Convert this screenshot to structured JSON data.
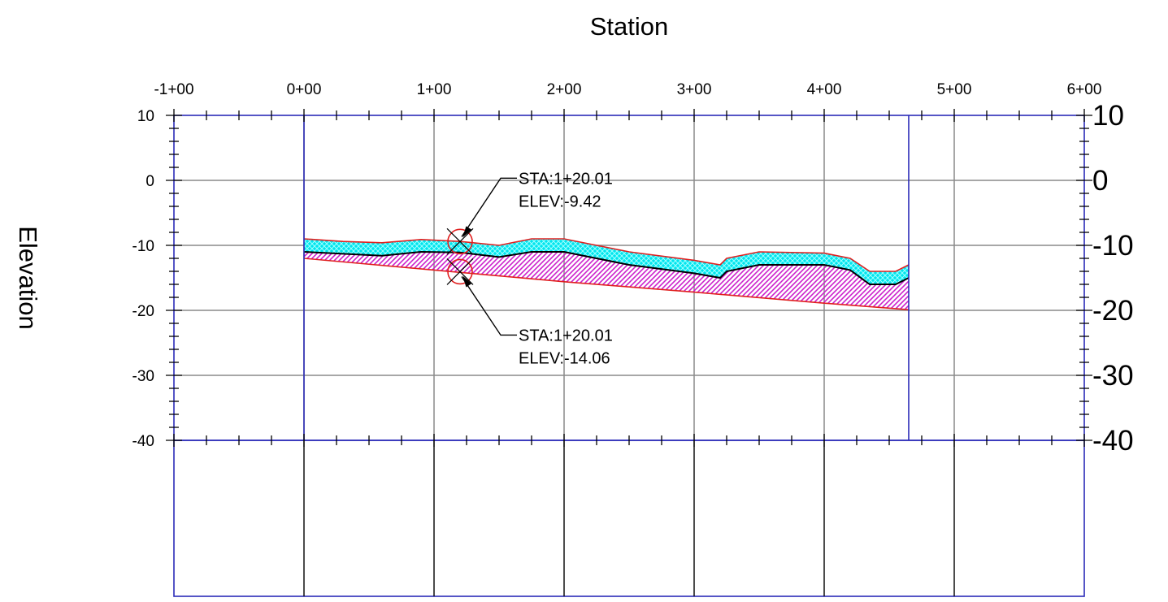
{
  "chart_data": {
    "type": "area",
    "title": "",
    "xlabel": "Station",
    "ylabel": "Elevation",
    "xlim": [
      -100,
      600
    ],
    "ylim": [
      -40,
      10
    ],
    "grid": true,
    "x_ticks": [
      {
        "value": -100,
        "label": "-1+00"
      },
      {
        "value": 0,
        "label": "0+00"
      },
      {
        "value": 100,
        "label": "1+00"
      },
      {
        "value": 200,
        "label": "2+00"
      },
      {
        "value": 300,
        "label": "3+00"
      },
      {
        "value": 400,
        "label": "4+00"
      },
      {
        "value": 500,
        "label": "5+00"
      },
      {
        "value": 600,
        "label": "6+00"
      }
    ],
    "y_ticks_left": [
      {
        "value": 10,
        "label": "10"
      },
      {
        "value": 0,
        "label": "0"
      },
      {
        "value": -10,
        "label": "-10"
      },
      {
        "value": -20,
        "label": "-20"
      },
      {
        "value": -30,
        "label": "-30"
      },
      {
        "value": -40,
        "label": "-40"
      }
    ],
    "y_ticks_right": [
      {
        "value": 10,
        "label": "10"
      },
      {
        "value": 0,
        "label": "0"
      },
      {
        "value": -10,
        "label": "-10"
      },
      {
        "value": -20,
        "label": "-20"
      },
      {
        "value": -30,
        "label": "-30"
      },
      {
        "value": -40,
        "label": "-40"
      }
    ],
    "extent": {
      "start_station": 0,
      "end_station": 465
    },
    "colors": {
      "frame": "#2b2bb8",
      "grid": "#8a8a8a",
      "top_surface": "#e02020",
      "upper_layer_fill": "#00e5ee",
      "middle_surface": "#000000",
      "lower_layer_hatch": "#cc22cc",
      "bottom_surface": "#e02020",
      "band_dividers": "#000000"
    },
    "series": [
      {
        "x": [
          0,
          30,
          60,
          90,
          120,
          150,
          175,
          200,
          250,
          300,
          320,
          325,
          350,
          400,
          420,
          435,
          455,
          465
        ],
        "values": [
          -9,
          -9.4,
          -9.6,
          -9.1,
          -9.4,
          -10,
          -9,
          -9,
          -11,
          -12.3,
          -13,
          -12,
          -11,
          -11.2,
          -12,
          -14,
          -14,
          -13
        ]
      },
      {
        "x": [
          0,
          30,
          60,
          90,
          120,
          150,
          175,
          200,
          250,
          300,
          320,
          325,
          350,
          400,
          420,
          435,
          455,
          465
        ],
        "values": [
          -11,
          -11.3,
          -11.6,
          -11,
          -11.1,
          -11.8,
          -11,
          -11,
          -13,
          -14.3,
          -15,
          -14,
          -13,
          -13,
          -13.8,
          -16,
          -16,
          -15
        ]
      },
      {
        "x": [
          0,
          100,
          200,
          300,
          400,
          465
        ],
        "values": [
          -12,
          -13.8,
          -15.6,
          -17.2,
          -18.9,
          -19.9
        ]
      }
    ],
    "markers": [
      {
        "station": 120.01,
        "elevation": -9.42,
        "line1": "STA:1+20.01",
        "line2": "ELEV:-9.42"
      },
      {
        "station": 120.01,
        "elevation": -14.06,
        "line1": "STA:1+20.01",
        "line2": "ELEV:-14.06"
      }
    ]
  }
}
